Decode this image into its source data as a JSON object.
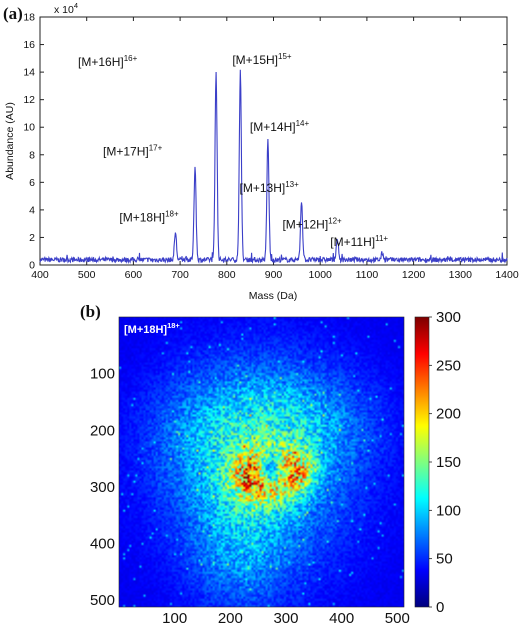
{
  "panel_a": {
    "letter": "(a)",
    "exponent_label": "x 10",
    "exponent_power": "4"
  },
  "panel_b": {
    "letter": "(b)"
  },
  "colors": {
    "spectrum_line": "#3b3fc8",
    "axis": "#222222"
  },
  "chart_data": [
    {
      "type": "line",
      "title": "",
      "xlabel": "Mass (Da)",
      "ylabel": "Abundance (AU)",
      "xlim": [
        400,
        1400
      ],
      "ylim": [
        0,
        18
      ],
      "y_multiplier": "x 10^4",
      "xticks": [
        400,
        500,
        600,
        700,
        800,
        900,
        1000,
        1100,
        1200,
        1300,
        1400
      ],
      "yticks": [
        0,
        2,
        4,
        6,
        8,
        10,
        12,
        14,
        16,
        18
      ],
      "peaks": [
        {
          "mass": 690,
          "abundance": 2.0,
          "label": "[M+18H]",
          "charge": "18+"
        },
        {
          "mass": 732,
          "abundance": 6.8,
          "label": "[M+17H]",
          "charge": "17+"
        },
        {
          "mass": 777,
          "abundance": 13.7,
          "label": "[M+16H]",
          "charge": "16+"
        },
        {
          "mass": 829,
          "abundance": 13.7,
          "label": "[M+15H]",
          "charge": "15+"
        },
        {
          "mass": 888,
          "abundance": 8.7,
          "label": "[M+14H]",
          "charge": "14+"
        },
        {
          "mass": 960,
          "abundance": 4.3,
          "label": "[M+13H]",
          "charge": "13+"
        },
        {
          "mass": 1037,
          "abundance": 1.5,
          "label": "[M+12H]",
          "charge": "12+"
        },
        {
          "mass": 1133,
          "abundance": 0.5,
          "label": "[M+11H]",
          "charge": "11+"
        }
      ],
      "baseline": 0.2,
      "grid": false
    },
    {
      "type": "heatmap",
      "title": "[M+18H]",
      "title_superscript": "18+",
      "xlim": [
        0,
        512
      ],
      "ylim": [
        0,
        512
      ],
      "xticks": [
        100,
        200,
        300,
        400,
        500
      ],
      "yticks": [
        100,
        200,
        300,
        400,
        500
      ],
      "colorbar": {
        "min": 0,
        "max": 300,
        "ticks": [
          0,
          50,
          100,
          150,
          200,
          250,
          300
        ],
        "colormap": "jet"
      }
    }
  ]
}
